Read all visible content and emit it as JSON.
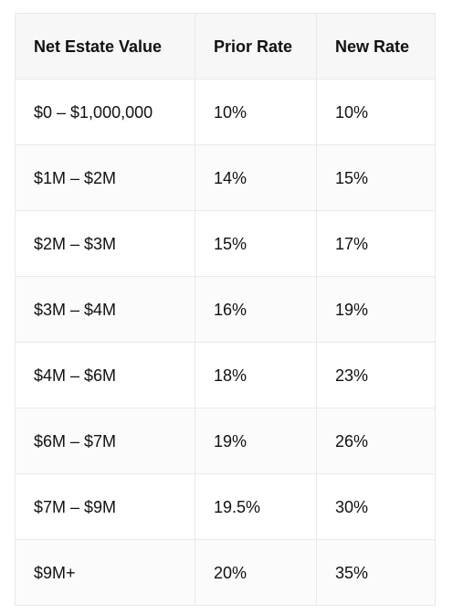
{
  "table": {
    "headers": [
      "Net Estate Value",
      "Prior Rate",
      "New Rate"
    ],
    "rows": [
      [
        "$0 – $1,000,000",
        "10%",
        "10%"
      ],
      [
        "$1M – $2M",
        "14%",
        "15%"
      ],
      [
        "$2M – $3M",
        "15%",
        "17%"
      ],
      [
        "$3M – $4M",
        "16%",
        "19%"
      ],
      [
        "$4M – $6M",
        "18%",
        "23%"
      ],
      [
        "$6M – $7M",
        "19%",
        "26%"
      ],
      [
        "$7M – $9M",
        "19.5%",
        "30%"
      ],
      [
        "$9M+",
        "20%",
        "35%"
      ]
    ]
  }
}
